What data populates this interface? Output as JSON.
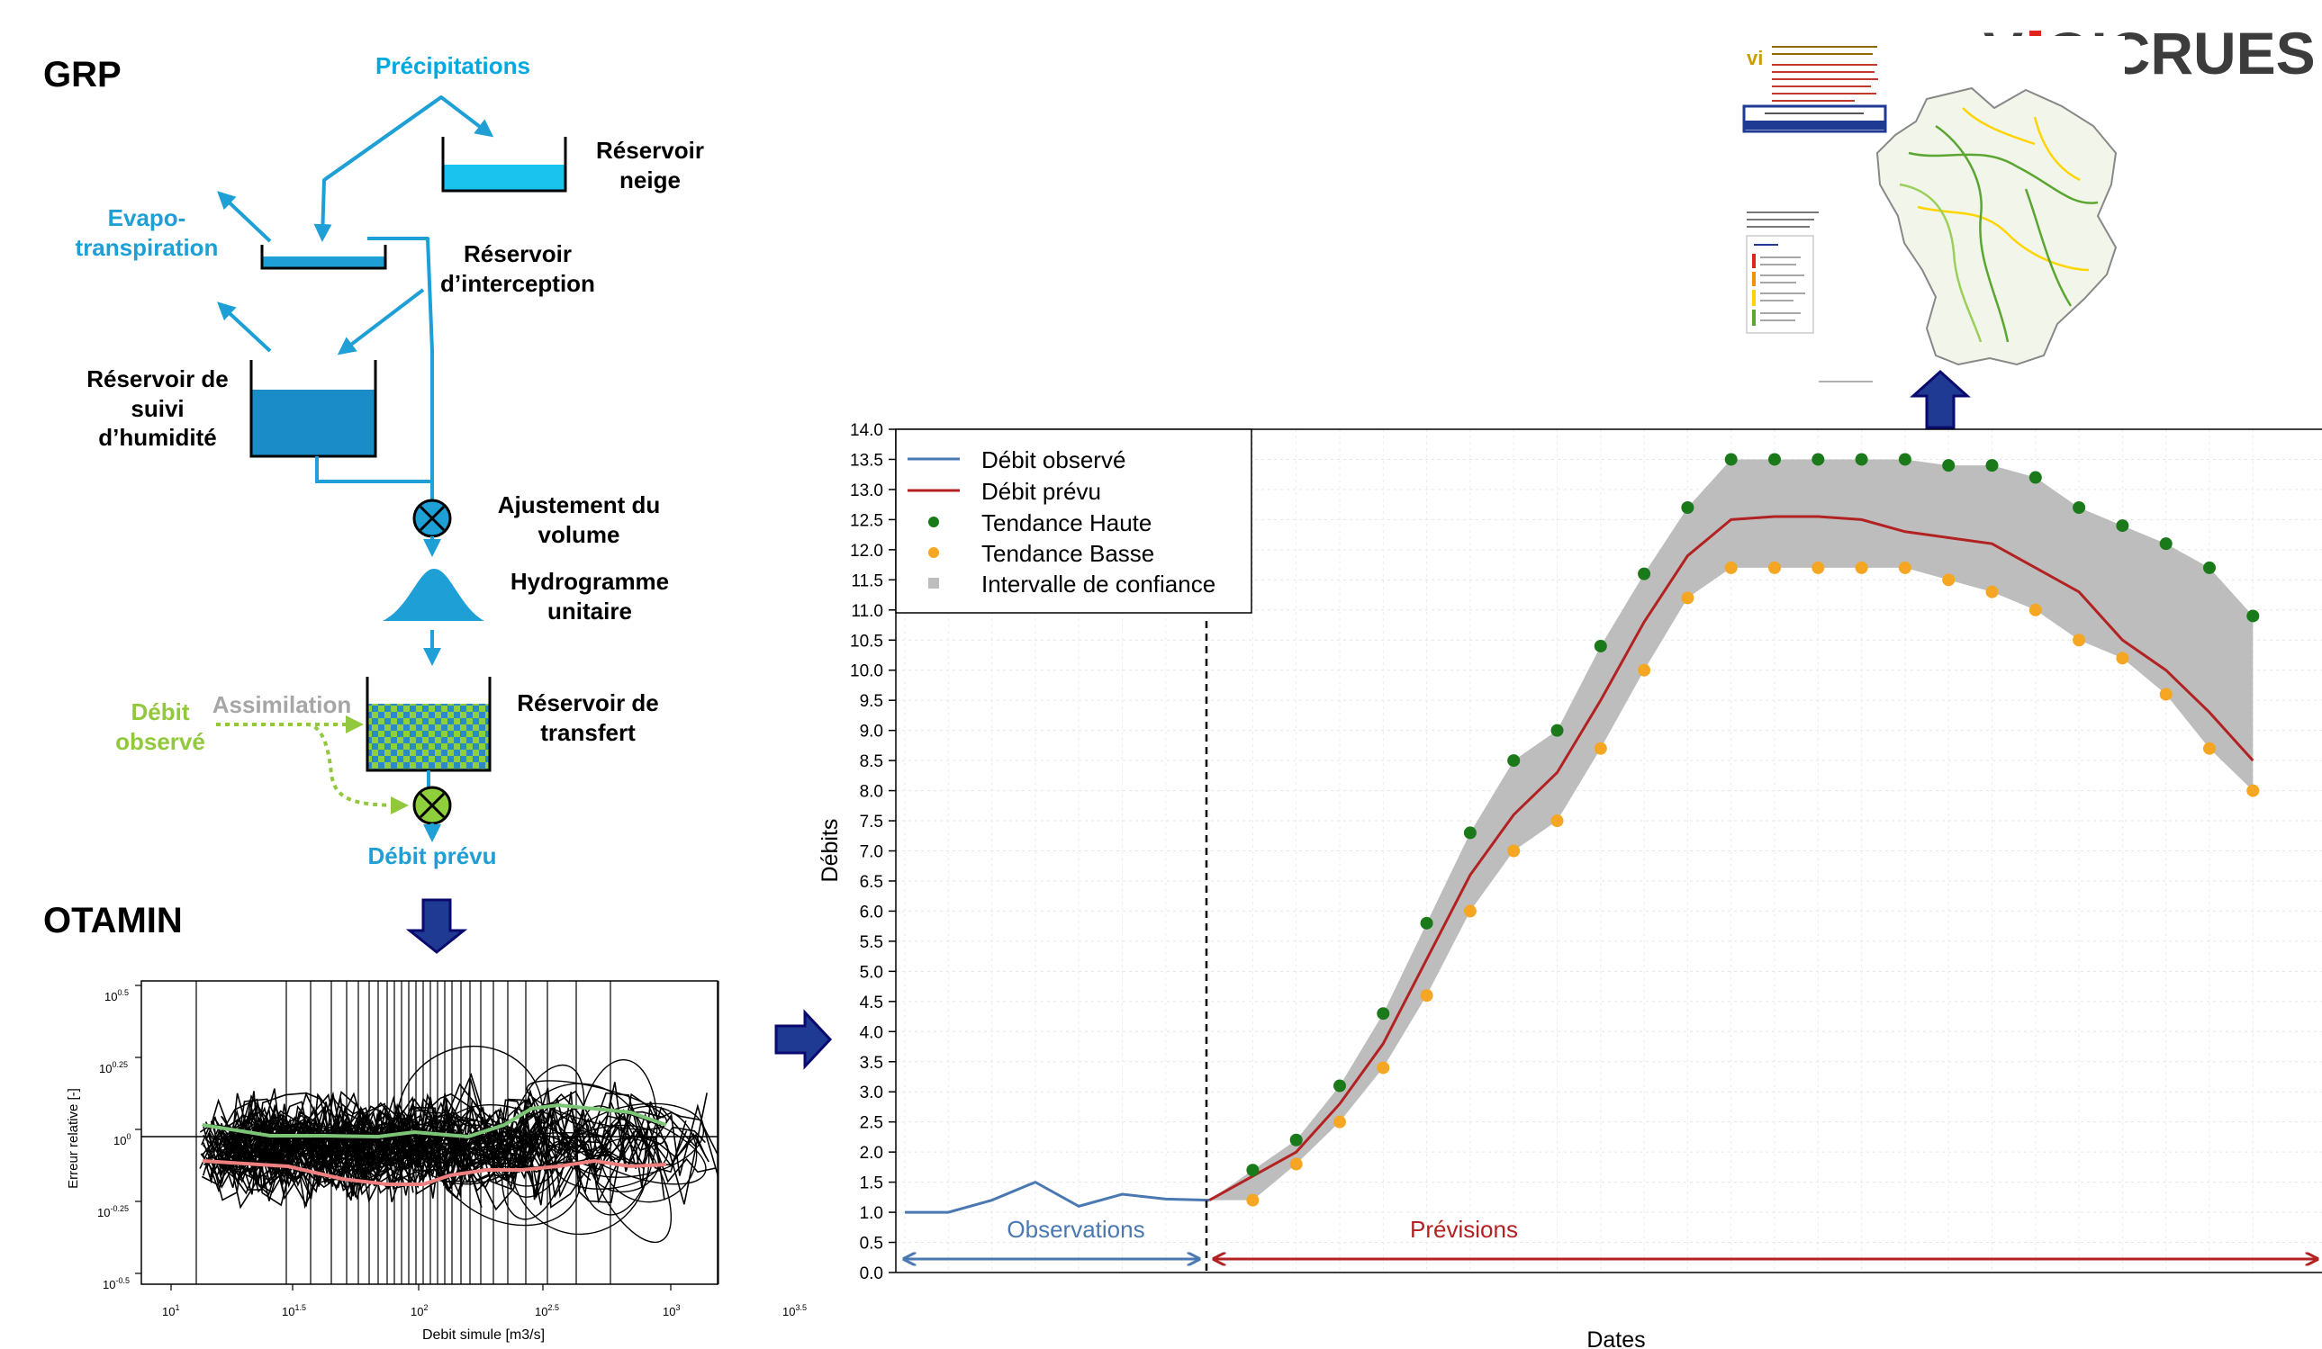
{
  "grp": {
    "title": "GRP",
    "labels": {
      "precipitations": "Précipitations",
      "evapo_1": "Evapo-",
      "evapo_2": "transpiration",
      "neige_1": "Réservoir",
      "neige_2": "neige",
      "interception_1": "Réservoir",
      "interception_2": "d’interception",
      "humidite_1": "Réservoir de",
      "humidite_2": "suivi",
      "humidite_3": "d’humidité",
      "ajustement_1": "Ajustement du",
      "ajustement_2": "volume",
      "hydrogramme_1": "Hydrogramme",
      "hydrogramme_2": "unitaire",
      "transfert_1": "Réservoir de",
      "transfert_2": "transfert",
      "assimilation": "Assimilation",
      "debit_obs_1": "Débit",
      "debit_obs_2": "observé",
      "debit_prevu": "Débit prévu"
    },
    "colors": {
      "flow": "#1e9fd6",
      "precip": "#00b3e6",
      "assim": "#92c83e",
      "assim_text": "#a6a6a6"
    }
  },
  "otamin": {
    "title": "OTAMIN",
    "ylabel": "Erreur relative [-]",
    "xlabel": "Debit simule [m3/s]",
    "yticks": [
      {
        "base": "10",
        "exp": "0.5"
      },
      {
        "base": "10",
        "exp": "0.25"
      },
      {
        "base": "10",
        "exp": "0"
      },
      {
        "base": "10",
        "exp": "-0.25"
      },
      {
        "base": "10",
        "exp": "-0.5"
      }
    ],
    "xticks": [
      {
        "base": "10",
        "exp": "1"
      },
      {
        "base": "10",
        "exp": "1.5"
      },
      {
        "base": "10",
        "exp": "2"
      },
      {
        "base": "10",
        "exp": "2.5"
      },
      {
        "base": "10",
        "exp": "3"
      },
      {
        "base": "10",
        "exp": "3.5"
      }
    ]
  },
  "vigicrues": {
    "logo_left": "V",
    "logo_right": "GICRUES",
    "colors": {
      "logo": "#3c3c3c",
      "red": "#e0261b",
      "orange": "#f39200",
      "yellow": "#ffd400",
      "green": "#5ba532"
    }
  },
  "colors": {
    "arrow_fill": "#1f3a93",
    "arrow_stroke": "#0a0a6e"
  },
  "chart_data": {
    "type": "line",
    "xlabel": "Dates",
    "ylabel": "Débits",
    "ylim": [
      0,
      14
    ],
    "ytick_step": 0.5,
    "legend": {
      "placement": "top-left",
      "entries": [
        "Débit observé",
        "Débit prévu",
        "Tendance Haute",
        "Tendance Basse",
        "Intervalle de confiance"
      ]
    },
    "annotations": {
      "observations": "Observations",
      "previsions": "Prévisions"
    },
    "grid": true,
    "x": [
      0,
      1,
      2,
      3,
      4,
      5,
      6,
      7,
      8,
      9,
      10,
      11,
      12,
      13,
      14,
      15,
      16,
      17,
      18,
      19,
      20,
      21,
      22,
      23,
      24,
      25,
      26,
      27,
      28,
      29,
      30,
      31
    ],
    "series": [
      {
        "name": "Débit observé",
        "color": "#4a78b0",
        "x": [
          0,
          1,
          2,
          3,
          4,
          5,
          6,
          7
        ],
        "values": [
          1.0,
          1.0,
          1.2,
          1.5,
          1.1,
          1.3,
          1.22,
          1.2
        ]
      },
      {
        "name": "Débit prévu",
        "color": "#b22222",
        "x": [
          7,
          8,
          9,
          10,
          11,
          12,
          13,
          14,
          15,
          16,
          17,
          18,
          19,
          20,
          21,
          22,
          23,
          24,
          25,
          26,
          27,
          28,
          29,
          30,
          31
        ],
        "values": [
          1.2,
          1.6,
          2.0,
          2.8,
          3.8,
          5.2,
          6.6,
          7.6,
          8.3,
          9.5,
          10.8,
          11.9,
          12.5,
          12.55,
          12.55,
          12.5,
          12.3,
          12.2,
          12.1,
          11.7,
          11.3,
          10.5,
          10.0,
          9.3,
          8.5
        ]
      },
      {
        "name": "Tendance Haute",
        "color": "#1a7a1a",
        "x": [
          8,
          9,
          10,
          11,
          12,
          13,
          14,
          15,
          16,
          17,
          18,
          19,
          20,
          21,
          22,
          23,
          24,
          25,
          26,
          27,
          28,
          29,
          30,
          31
        ],
        "values": [
          1.7,
          2.2,
          3.1,
          4.3,
          5.8,
          7.3,
          8.5,
          9.0,
          10.4,
          11.6,
          12.7,
          13.5,
          13.5,
          13.5,
          13.5,
          13.5,
          13.4,
          13.4,
          13.2,
          12.7,
          12.4,
          12.1,
          11.7,
          10.9
        ]
      },
      {
        "name": "Tendance Basse",
        "color": "#f5a623",
        "x": [
          8,
          9,
          10,
          11,
          12,
          13,
          14,
          15,
          16,
          17,
          18,
          19,
          20,
          21,
          22,
          23,
          24,
          25,
          26,
          27,
          28,
          29,
          30,
          31
        ],
        "values": [
          1.2,
          1.8,
          2.5,
          3.4,
          4.6,
          6.0,
          7.0,
          7.5,
          8.7,
          10.0,
          11.2,
          11.7,
          11.7,
          11.7,
          11.7,
          11.7,
          11.5,
          11.3,
          11.0,
          10.5,
          10.2,
          9.6,
          8.7,
          8.0
        ]
      }
    ]
  }
}
